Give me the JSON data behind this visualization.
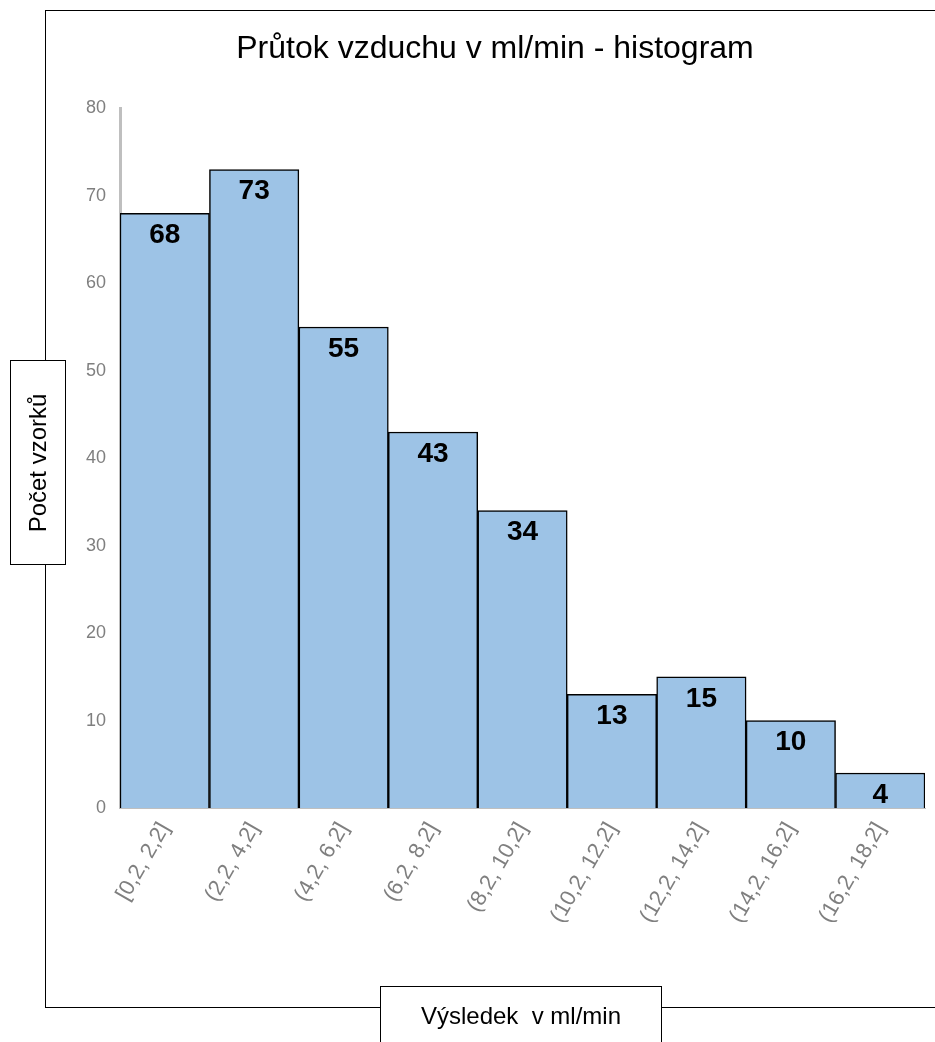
{
  "chart_data": {
    "type": "bar",
    "title": "Průtok vzduchu v ml/min - histogram",
    "xlabel": "Výsledek  v ml/min",
    "ylabel": "Počet vzorků",
    "categories": [
      "[0,2, 2,2]",
      "(2,2, 4,2]",
      "(4,2, 6,2]",
      "(6,2, 8,2]",
      "(8,2, 10,2]",
      "(10,2, 12,2]",
      "(12,2, 14,2]",
      "(14,2, 16,2]",
      "(16,2, 18,2]"
    ],
    "values": [
      68,
      73,
      55,
      43,
      34,
      13,
      15,
      10,
      4
    ],
    "color": "#9dc3e6",
    "ylim": [
      0,
      80
    ],
    "yticks": [
      0,
      10,
      20,
      30,
      40,
      50,
      60,
      70,
      80
    ],
    "grid": false,
    "data_labels": true
  }
}
